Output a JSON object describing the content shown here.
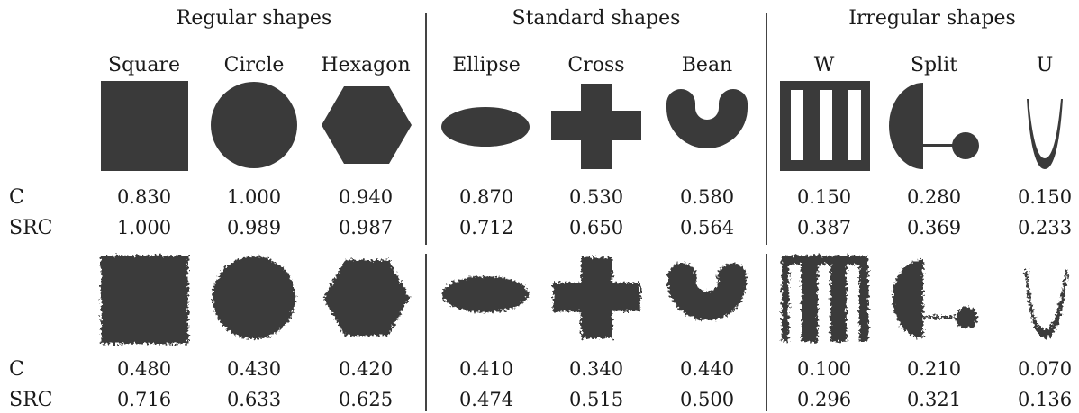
{
  "groups": [
    {
      "title": "Regular shapes"
    },
    {
      "title": "Standard shapes"
    },
    {
      "title": "Irregular shapes"
    }
  ],
  "columns": [
    {
      "name": "Square"
    },
    {
      "name": "Circle"
    },
    {
      "name": "Hexagon"
    },
    {
      "name": "Ellipse"
    },
    {
      "name": "Cross"
    },
    {
      "name": "Bean"
    },
    {
      "name": "W"
    },
    {
      "name": "Split"
    },
    {
      "name": "U"
    }
  ],
  "row_labels": {
    "c": "C",
    "src": "SRC"
  },
  "clean": {
    "c": [
      "0.830",
      "1.000",
      "0.940",
      "0.870",
      "0.530",
      "0.580",
      "0.150",
      "0.280",
      "0.150"
    ],
    "src": [
      "1.000",
      "0.989",
      "0.987",
      "0.712",
      "0.650",
      "0.564",
      "0.387",
      "0.369",
      "0.233"
    ]
  },
  "noisy": {
    "c": [
      "0.480",
      "0.430",
      "0.420",
      "0.410",
      "0.340",
      "0.440",
      "0.100",
      "0.210",
      "0.070"
    ],
    "src": [
      "0.716",
      "0.633",
      "0.625",
      "0.474",
      "0.515",
      "0.500",
      "0.296",
      "0.321",
      "0.136"
    ]
  },
  "colors": {
    "shape_fill": "#3a3a3a",
    "divider": "#444444"
  }
}
